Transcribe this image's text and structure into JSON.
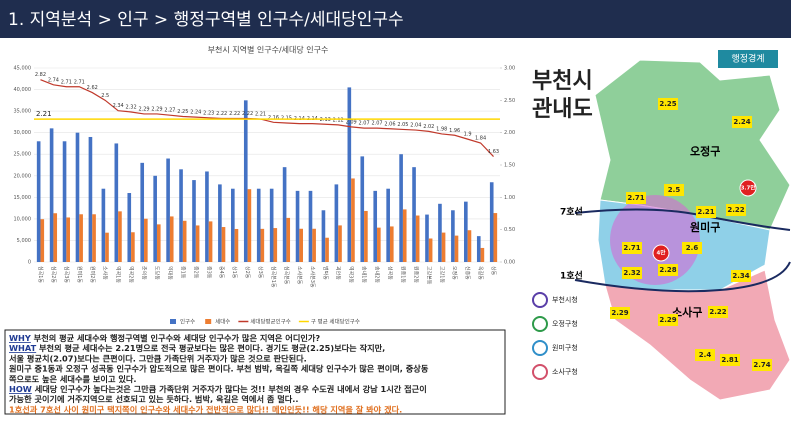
{
  "header": {
    "title": "1. 지역분석 > 인구 > 행정구역별 인구수/세대당인구수"
  },
  "chart_data": {
    "type": "bar-line",
    "title": "부천시 지역별 인구수/세대당 인구수",
    "categories": [
      "심곡1동",
      "심곡2동",
      "심곡3동",
      "원미1동",
      "원미2동",
      "소사동",
      "역곡1동",
      "역곡2동",
      "춘의동",
      "도당동",
      "약대동",
      "중1동",
      "중2동",
      "중3동",
      "중4동",
      "상1동",
      "상2동",
      "상3동",
      "심곡본1동",
      "심곡본동",
      "소사본동",
      "소사본3동",
      "범박동",
      "괴안동",
      "역곡3동",
      "송내1동",
      "송내2동",
      "성곡동",
      "원종1동",
      "원종2동",
      "고강본동",
      "고강1동",
      "오정동",
      "신흥동",
      "옥길동",
      "상동"
    ],
    "series": [
      {
        "name": "인구수",
        "color": "#4472c4",
        "axis": "y",
        "values": [
          28000,
          31000,
          28000,
          30000,
          29000,
          17000,
          27500,
          16000,
          23000,
          20000,
          24000,
          21500,
          19000,
          21000,
          18000,
          17000,
          37500,
          17000,
          17000,
          22000,
          16500,
          16500,
          12000,
          18000,
          40500,
          24500,
          16500,
          17000,
          25000,
          22000,
          11000,
          13500,
          12000,
          14000,
          6000,
          18500
        ]
      },
      {
        "name": "세대수",
        "color": "#ed7d31",
        "axis": "y",
        "values": [
          9930,
          11310,
          10330,
          11070,
          11070,
          6800,
          11750,
          6900,
          10040,
          8730,
          10570,
          9560,
          8480,
          9420,
          8110,
          7660,
          16890,
          7690,
          7870,
          10230,
          7710,
          7710,
          5630,
          8490,
          19380,
          11840,
          7970,
          8250,
          12200,
          10780,
          5450,
          6820,
          6120,
          7370,
          3260,
          11350
        ]
      },
      {
        "name": "세대당평균인구수",
        "color": "#c0392b",
        "axis": "y2",
        "values": [
          2.82,
          2.74,
          2.71,
          2.71,
          2.62,
          2.5,
          2.34,
          2.32,
          2.29,
          2.29,
          2.27,
          2.25,
          2.24,
          2.23,
          2.22,
          2.22,
          2.22,
          2.21,
          2.16,
          2.15,
          2.14,
          2.14,
          2.13,
          2.12,
          2.09,
          2.07,
          2.07,
          2.06,
          2.05,
          2.04,
          2.02,
          1.98,
          1.96,
          1.9,
          1.84,
          1.63
        ]
      }
    ],
    "reference": {
      "name": "구 평균 세대당인구수",
      "color": "#ffd700",
      "value": 2.21,
      "axis": "y2"
    },
    "ylim": [
      0,
      45000
    ],
    "yticks": [
      0,
      {
        "value": 5000,
        "label": "5,000"
      },
      {
        "value": 10000,
        "label": "10,000"
      },
      {
        "value": 15000,
        "label": "15,000"
      },
      {
        "value": 20000,
        "label": "20,000"
      },
      {
        "value": 25000,
        "label": "25,000"
      },
      {
        "value": 30000,
        "label": "30,000"
      },
      {
        "value": 35000,
        "label": "35,000"
      },
      {
        "value": 40000,
        "label": "40,000"
      },
      {
        "value": 45000,
        "label": "45,000"
      }
    ],
    "y2lim": [
      0,
      3
    ],
    "y2ticks": [
      {
        "value": 0,
        "label": "0.00"
      },
      {
        "value": 0.5,
        "label": "0.50"
      },
      {
        "value": 1,
        "label": "1.00"
      },
      {
        "value": 1.5,
        "label": "1.50"
      },
      {
        "value": 2,
        "label": "2.00"
      },
      {
        "value": 2.5,
        "label": "2.50"
      },
      {
        "value": 3,
        "label": "3.00"
      }
    ],
    "grid": true
  },
  "notes": [
    {
      "lead": "WHY",
      "text": " 부천의 평균 세대수와 행정구역별 인구수와 세대당 인구수가 많은 지역은 어디인가?"
    },
    {
      "lead": "WHAT",
      "text": " 부천의 평균 세대수는 2.21명으로 전국 평균보다는 많은 편이다. 경기도 평균(2.25)보다는 작지만,"
    },
    {
      "text": "서울 평균치(2.07)보다는 큰편이다. 그만큼 가족단위 거주자가 많은 것으로 판단된다."
    },
    {
      "text": "원미구 중1동과 오정구 성곡동 인구수가 압도적으로 많은 편이다. 부천 범박, 옥길쪽 세대당 인구수가 많은 편이며, 중상동"
    },
    {
      "text": "쪽으로도 높은 세대수를 보이고 있다."
    },
    {
      "lead": "HOW",
      "text": " 세대당 인구수가 높다는것은 그만큼 가족단위 거주자가 많다는 것!! 부천의 경우 수도권 내에서 강남 1시간 접근이"
    },
    {
      "text": "가능한 곳이기에 거주지역으로 선호되고 있는 듯하다. 범박, 옥길은 역에서 좀 멀다.."
    },
    {
      "text": "1호선과 7호선 사이 원미구 택지쪽이 인구수와 세대수가 전반적으로 많다!! 메인인듯!! 해당 지역을 잘 봐야 겠다."
    }
  ],
  "map": {
    "button": "행정경계",
    "title": [
      "부천시",
      "관내도"
    ],
    "districts": [
      "오정구",
      "원미구",
      "소사구"
    ],
    "lines": [
      "7호선",
      "1호선"
    ],
    "labels": [
      "2.25",
      "2.24",
      "3.7만",
      "2.71",
      "2.5",
      "2.21",
      "2.22",
      "2.71",
      "4만",
      "2.6",
      "2.32",
      "2.28",
      "2.34",
      "2.29",
      "2.29",
      "2.22",
      "2.4",
      "2.81",
      "2.74"
    ],
    "legend": [
      "부천시청",
      "오정구청",
      "원미구청",
      "소사구청"
    ]
  }
}
